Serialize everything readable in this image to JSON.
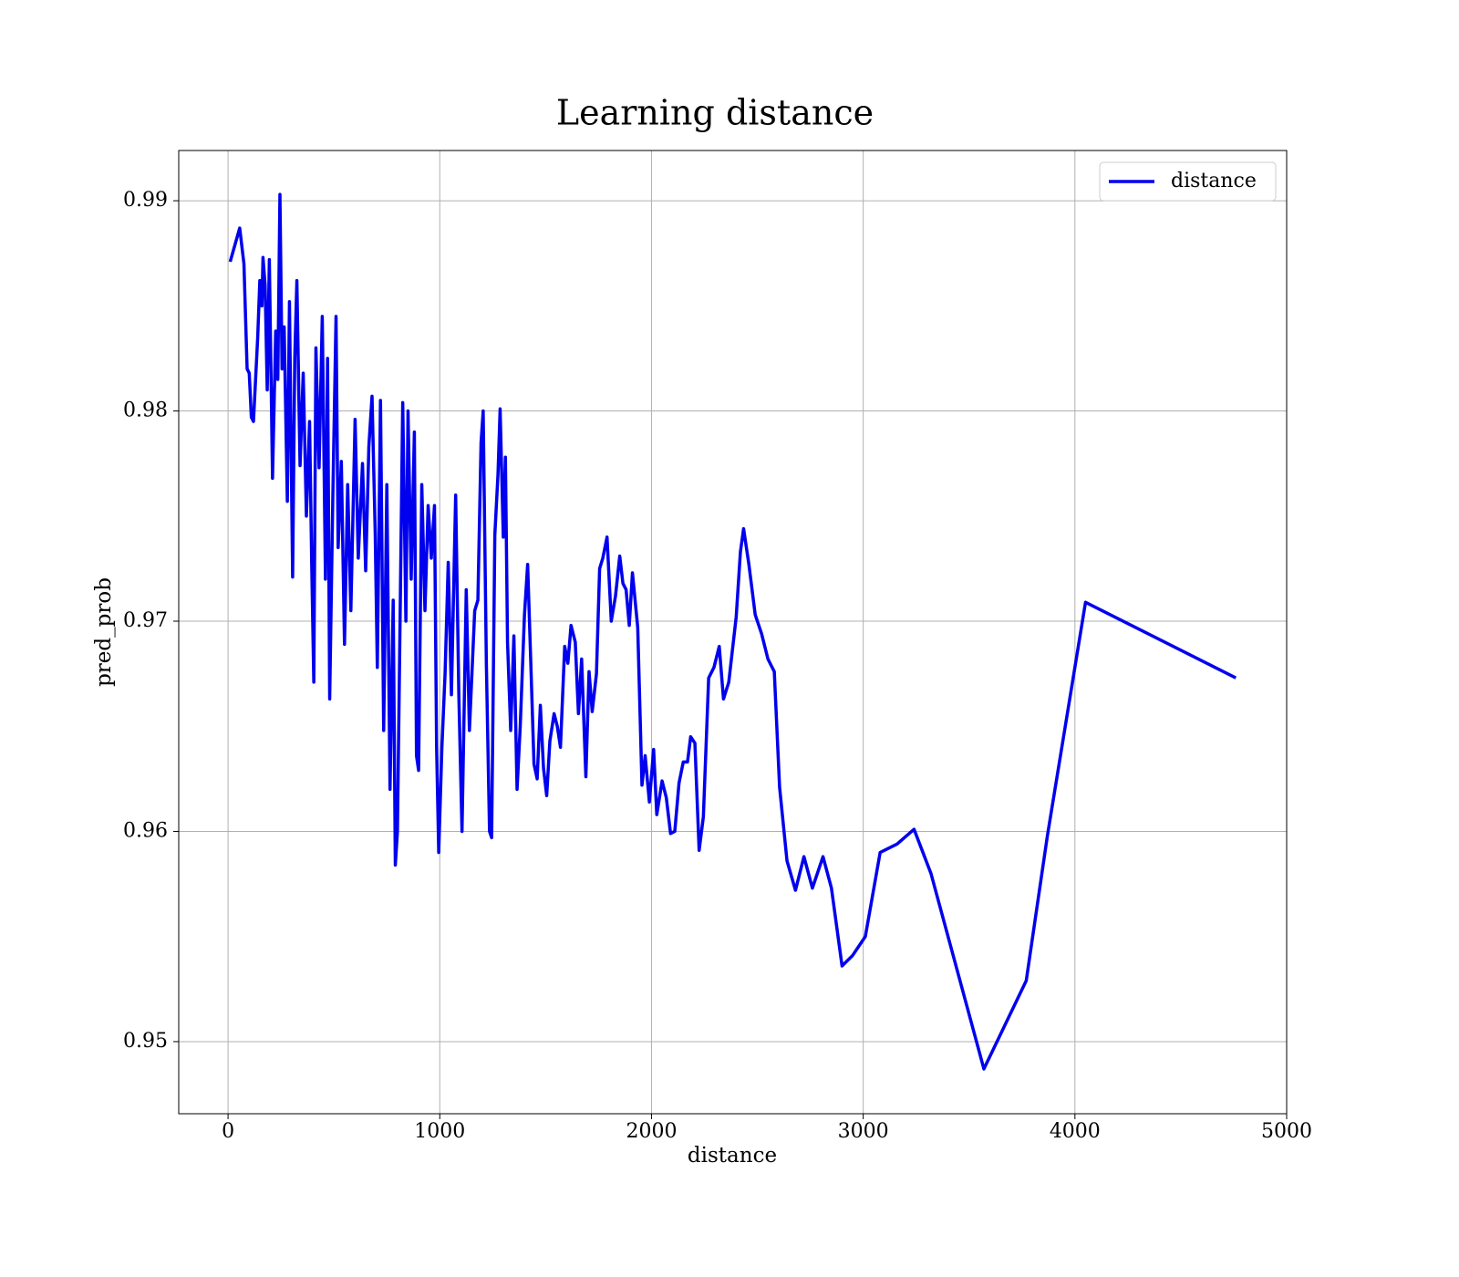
{
  "chart_data": {
    "type": "line",
    "title": "Learning distance",
    "xlabel": "distance",
    "ylabel": "pred_prob",
    "xlim": [
      -233,
      5000
    ],
    "ylim": [
      0.94657,
      0.99239
    ],
    "xticks": [
      0,
      1000,
      2000,
      3000,
      4000,
      5000
    ],
    "yticks": [
      0.95,
      0.96,
      0.97,
      0.98,
      0.99
    ],
    "grid": true,
    "legend": "upper right",
    "x": [
      10,
      55,
      75,
      90,
      100,
      110,
      120,
      130,
      140,
      150,
      160,
      165,
      175,
      185,
      195,
      210,
      225,
      235,
      245,
      255,
      265,
      280,
      290,
      305,
      315,
      325,
      340,
      355,
      370,
      385,
      395,
      405,
      415,
      430,
      445,
      460,
      470,
      480,
      495,
      510,
      520,
      535,
      550,
      565,
      580,
      600,
      615,
      635,
      650,
      665,
      680,
      695,
      705,
      720,
      735,
      750,
      765,
      780,
      790,
      800,
      810,
      825,
      840,
      850,
      865,
      880,
      890,
      900,
      915,
      930,
      945,
      960,
      975,
      985,
      995,
      1010,
      1025,
      1040,
      1055,
      1075,
      1090,
      1105,
      1125,
      1140,
      1165,
      1180,
      1195,
      1205,
      1220,
      1235,
      1245,
      1260,
      1275,
      1285,
      1300,
      1310,
      1320,
      1335,
      1350,
      1365,
      1380,
      1400,
      1415,
      1430,
      1445,
      1460,
      1475,
      1490,
      1505,
      1520,
      1540,
      1555,
      1570,
      1590,
      1605,
      1620,
      1640,
      1655,
      1670,
      1690,
      1705,
      1720,
      1740,
      1755,
      1770,
      1790,
      1810,
      1830,
      1850,
      1865,
      1880,
      1895,
      1910,
      1935,
      1955,
      1970,
      1990,
      2010,
      2025,
      2050,
      2070,
      2090,
      2110,
      2130,
      2150,
      2170,
      2185,
      2205,
      2225,
      2245,
      2270,
      2295,
      2320,
      2340,
      2365,
      2400,
      2420,
      2435,
      2460,
      2490,
      2520,
      2550,
      2580,
      2605,
      2640,
      2680,
      2720,
      2760,
      2810,
      2850,
      2900,
      2950,
      3010,
      3080,
      3160,
      3240,
      3320,
      3570,
      3770,
      3870,
      4050,
      4760
    ],
    "series": [
      {
        "name": "distance",
        "color": "#0000ee",
        "values": [
          0.9871,
          0.9887,
          0.987,
          0.982,
          0.9818,
          0.9797,
          0.9795,
          0.9815,
          0.9835,
          0.9862,
          0.985,
          0.9873,
          0.986,
          0.981,
          0.9872,
          0.9768,
          0.9838,
          0.9815,
          0.9903,
          0.982,
          0.984,
          0.9757,
          0.9852,
          0.9721,
          0.9825,
          0.9862,
          0.9774,
          0.9818,
          0.975,
          0.9795,
          0.9728,
          0.9671,
          0.983,
          0.9773,
          0.9845,
          0.972,
          0.9825,
          0.9663,
          0.976,
          0.9845,
          0.9735,
          0.9776,
          0.9689,
          0.9765,
          0.9705,
          0.9796,
          0.973,
          0.9775,
          0.9724,
          0.9783,
          0.9807,
          0.9742,
          0.9678,
          0.9805,
          0.9648,
          0.9765,
          0.962,
          0.971,
          0.9584,
          0.96,
          0.968,
          0.9804,
          0.97,
          0.98,
          0.972,
          0.979,
          0.9636,
          0.9629,
          0.9765,
          0.9705,
          0.9755,
          0.973,
          0.9755,
          0.964,
          0.959,
          0.964,
          0.9675,
          0.9728,
          0.9665,
          0.976,
          0.9665,
          0.96,
          0.9715,
          0.9648,
          0.9705,
          0.971,
          0.9785,
          0.98,
          0.968,
          0.96,
          0.9597,
          0.9741,
          0.977,
          0.9801,
          0.974,
          0.9778,
          0.969,
          0.9648,
          0.9693,
          0.962,
          0.965,
          0.9703,
          0.9727,
          0.968,
          0.9632,
          0.9625,
          0.966,
          0.963,
          0.9617,
          0.9643,
          0.9656,
          0.965,
          0.964,
          0.9688,
          0.968,
          0.9698,
          0.969,
          0.9656,
          0.9682,
          0.9626,
          0.9676,
          0.9657,
          0.9675,
          0.9725,
          0.973,
          0.974,
          0.97,
          0.9712,
          0.9731,
          0.9718,
          0.9715,
          0.9698,
          0.9723,
          0.9697,
          0.9622,
          0.9636,
          0.9614,
          0.9639,
          0.9608,
          0.9624,
          0.9616,
          0.9599,
          0.96,
          0.9623,
          0.9633,
          0.9633,
          0.9645,
          0.9642,
          0.9591,
          0.9607,
          0.9673,
          0.9678,
          0.9688,
          0.9663,
          0.9671,
          0.9702,
          0.9733,
          0.9744,
          0.9727,
          0.9703,
          0.9694,
          0.9682,
          0.9676,
          0.9621,
          0.9586,
          0.9572,
          0.9588,
          0.9573,
          0.9588,
          0.9573,
          0.9536,
          0.9541,
          0.955,
          0.959,
          0.9594,
          0.9601,
          0.958,
          0.9487,
          0.9529,
          0.9598,
          0.9709,
          0.9673
        ]
      }
    ]
  }
}
